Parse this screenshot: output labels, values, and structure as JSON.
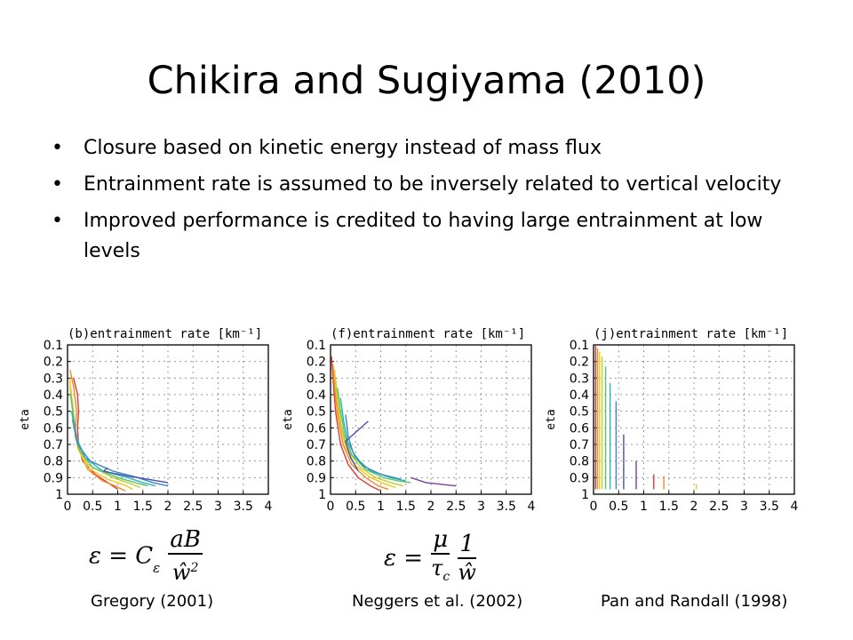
{
  "slide": {
    "title": "Chikira and Sugiyama (2010)",
    "bullets": [
      "Closure based on kinetic energy instead of mass flux",
      "Entrainment rate is assumed to be inversely related to vertical velocity",
      "Improved performance is credited to having large entrainment at low levels"
    ],
    "bullet_symbol": "•"
  },
  "equations": {
    "gregory": {
      "lhs": "ε = C",
      "sub": "ε",
      "num": "aB",
      "den": "ŵ",
      "sup": "2"
    },
    "neggers": {
      "lhs": "ε =",
      "num1": "μ",
      "den1": "τ",
      "sub1": "c",
      "num2": "1",
      "den2": "ŵ"
    }
  },
  "captions": {
    "gregory": "Gregory (2001)",
    "neggers": "Neggers et al. (2002)",
    "pan": "Pan and Randall (1998)"
  },
  "colors": {
    "series": [
      "#e03a2f",
      "#f08a24",
      "#f5c518",
      "#b9d233",
      "#5cc46a",
      "#2fb3b3",
      "#3a86c8",
      "#4a4fb0",
      "#7a3e9d"
    ],
    "grid": "#999999"
  },
  "chart_data": [
    {
      "type": "line",
      "title": "(b)entrainment rate [km⁻¹]",
      "ylabel": "eta",
      "xlim": [
        0,
        4
      ],
      "ylim": [
        1,
        0.1
      ],
      "xticks": [
        "0",
        "0.5",
        "1",
        "1.5",
        "2",
        "2.5",
        "3",
        "3.5",
        "4"
      ],
      "yticks": [
        "0.1",
        "0.2",
        "0.3",
        "0.4",
        "0.5",
        "0.6",
        "0.7",
        "0.8",
        "0.9",
        "1"
      ],
      "grid": true,
      "series": [
        {
          "points": [
            [
              0.12,
              0.3
            ],
            [
              0.2,
              0.4
            ],
            [
              0.22,
              0.5
            ],
            [
              0.2,
              0.6
            ],
            [
              0.22,
              0.7
            ],
            [
              0.3,
              0.8
            ],
            [
              0.55,
              0.88
            ],
            [
              0.8,
              0.93
            ],
            [
              1.0,
              0.97
            ]
          ]
        },
        {
          "points": [
            [
              0.05,
              0.25
            ],
            [
              0.12,
              0.35
            ],
            [
              0.18,
              0.5
            ],
            [
              0.15,
              0.65
            ],
            [
              0.25,
              0.75
            ],
            [
              0.4,
              0.85
            ],
            [
              0.7,
              0.92
            ],
            [
              0.95,
              0.95
            ],
            [
              1.15,
              0.98
            ]
          ]
        },
        {
          "points": [
            [
              0.04,
              0.3
            ],
            [
              0.1,
              0.45
            ],
            [
              0.15,
              0.6
            ],
            [
              0.2,
              0.72
            ],
            [
              0.4,
              0.84
            ],
            [
              0.8,
              0.91
            ],
            [
              1.1,
              0.94
            ],
            [
              1.3,
              0.97
            ]
          ]
        },
        {
          "points": [
            [
              0.05,
              0.35
            ],
            [
              0.12,
              0.55
            ],
            [
              0.2,
              0.7
            ],
            [
              0.4,
              0.82
            ],
            [
              0.9,
              0.9
            ],
            [
              1.2,
              0.93
            ],
            [
              1.45,
              0.96
            ]
          ]
        },
        {
          "points": [
            [
              0.06,
              0.4
            ],
            [
              0.15,
              0.6
            ],
            [
              0.25,
              0.74
            ],
            [
              0.5,
              0.84
            ],
            [
              1.0,
              0.9
            ],
            [
              1.35,
              0.93
            ],
            [
              1.6,
              0.95
            ]
          ]
        },
        {
          "points": [
            [
              0.08,
              0.5
            ],
            [
              0.18,
              0.66
            ],
            [
              0.35,
              0.78
            ],
            [
              0.7,
              0.86
            ],
            [
              1.2,
              0.9
            ],
            [
              1.5,
              0.93
            ],
            [
              1.75,
              0.95
            ]
          ]
        },
        {
          "points": [
            [
              0.1,
              0.55
            ],
            [
              0.2,
              0.7
            ],
            [
              0.45,
              0.8
            ],
            [
              0.9,
              0.86
            ],
            [
              1.4,
              0.9
            ],
            [
              1.7,
              0.93
            ],
            [
              2.0,
              0.95
            ]
          ]
        },
        {
          "points": [
            [
              0.8,
              0.84
            ],
            [
              0.72,
              0.86
            ],
            [
              0.85,
              0.87
            ],
            [
              1.2,
              0.89
            ],
            [
              1.6,
              0.91
            ],
            [
              2.0,
              0.93
            ]
          ]
        }
      ]
    },
    {
      "type": "line",
      "title": "(f)entrainment rate [km⁻¹]",
      "ylabel": "eta",
      "xlim": [
        0,
        4
      ],
      "ylim": [
        1,
        0.1
      ],
      "xticks": [
        "0",
        "0.5",
        "1",
        "1.5",
        "2",
        "2.5",
        "3",
        "3.5",
        "4"
      ],
      "yticks": [
        "0.1",
        "0.2",
        "0.3",
        "0.4",
        "0.5",
        "0.6",
        "0.7",
        "0.8",
        "0.9",
        "1"
      ],
      "grid": true,
      "series": [
        {
          "points": [
            [
              0.02,
              0.17
            ],
            [
              0.05,
              0.3
            ],
            [
              0.1,
              0.5
            ],
            [
              0.2,
              0.7
            ],
            [
              0.35,
              0.82
            ],
            [
              0.55,
              0.9
            ],
            [
              0.8,
              0.95
            ],
            [
              1.0,
              0.98
            ]
          ]
        },
        {
          "points": [
            [
              0.05,
              0.22
            ],
            [
              0.08,
              0.35
            ],
            [
              0.14,
              0.52
            ],
            [
              0.25,
              0.7
            ],
            [
              0.42,
              0.82
            ],
            [
              0.7,
              0.9
            ],
            [
              0.95,
              0.95
            ],
            [
              1.15,
              0.97
            ]
          ]
        },
        {
          "points": [
            [
              0.08,
              0.25
            ],
            [
              0.12,
              0.4
            ],
            [
              0.18,
              0.56
            ],
            [
              0.3,
              0.72
            ],
            [
              0.5,
              0.83
            ],
            [
              0.8,
              0.9
            ],
            [
              1.1,
              0.94
            ],
            [
              1.3,
              0.96
            ]
          ]
        },
        {
          "points": [
            [
              0.1,
              0.3
            ],
            [
              0.15,
              0.45
            ],
            [
              0.22,
              0.6
            ],
            [
              0.35,
              0.74
            ],
            [
              0.6,
              0.84
            ],
            [
              0.9,
              0.9
            ],
            [
              1.2,
              0.93
            ],
            [
              1.45,
              0.95
            ]
          ]
        },
        {
          "points": [
            [
              0.14,
              0.36
            ],
            [
              0.2,
              0.5
            ],
            [
              0.28,
              0.64
            ],
            [
              0.42,
              0.76
            ],
            [
              0.7,
              0.85
            ],
            [
              1.05,
              0.9
            ],
            [
              1.35,
              0.92
            ],
            [
              1.6,
              0.93
            ]
          ]
        },
        {
          "points": [
            [
              0.2,
              0.42
            ],
            [
              0.26,
              0.56
            ],
            [
              0.34,
              0.68
            ],
            [
              0.5,
              0.78
            ],
            [
              0.8,
              0.86
            ],
            [
              1.2,
              0.9
            ],
            [
              1.5,
              0.92
            ]
          ]
        },
        {
          "points": [
            [
              0.3,
              0.52
            ],
            [
              0.35,
              0.65
            ],
            [
              0.45,
              0.75
            ],
            [
              0.65,
              0.83
            ],
            [
              1.0,
              0.88
            ],
            [
              1.4,
              0.91
            ]
          ]
        },
        {
          "points": [
            [
              0.75,
              0.56
            ],
            [
              0.3,
              0.68
            ],
            [
              0.4,
              0.78
            ],
            [
              0.55,
              0.86
            ]
          ]
        },
        {
          "points": [
            [
              1.6,
              0.9
            ],
            [
              1.9,
              0.93
            ],
            [
              2.2,
              0.94
            ],
            [
              2.5,
              0.95
            ]
          ]
        }
      ]
    },
    {
      "type": "line",
      "title": "(j)entrainment rate [km⁻¹]",
      "ylabel": "eta",
      "xlim": [
        0,
        4
      ],
      "ylim": [
        1,
        0.1
      ],
      "xticks": [
        "0",
        "0.5",
        "1",
        "1.5",
        "2",
        "2.5",
        "3",
        "3.5",
        "4"
      ],
      "yticks": [
        "0.1",
        "0.2",
        "0.3",
        "0.4",
        "0.5",
        "0.6",
        "0.7",
        "0.8",
        "0.9",
        "1"
      ],
      "grid": true,
      "series": [
        {
          "points": [
            [
              0.04,
              0.1
            ],
            [
              0.04,
              0.97
            ]
          ]
        },
        {
          "points": [
            [
              0.08,
              0.12
            ],
            [
              0.08,
              0.97
            ]
          ]
        },
        {
          "points": [
            [
              0.12,
              0.14
            ],
            [
              0.12,
              0.97
            ]
          ]
        },
        {
          "points": [
            [
              0.17,
              0.17
            ],
            [
              0.17,
              0.97
            ]
          ]
        },
        {
          "points": [
            [
              0.24,
              0.23
            ],
            [
              0.24,
              0.97
            ]
          ]
        },
        {
          "points": [
            [
              0.33,
              0.33
            ],
            [
              0.33,
              0.97
            ]
          ]
        },
        {
          "points": [
            [
              0.45,
              0.44
            ],
            [
              0.45,
              0.97
            ]
          ]
        },
        {
          "points": [
            [
              0.6,
              0.64
            ],
            [
              0.6,
              0.97
            ]
          ]
        },
        {
          "points": [
            [
              0.85,
              0.8
            ],
            [
              0.85,
              0.97
            ]
          ]
        },
        {
          "points": [
            [
              1.2,
              0.88
            ],
            [
              1.2,
              0.97
            ]
          ]
        },
        {
          "points": [
            [
              1.4,
              0.89
            ],
            [
              1.4,
              0.97
            ]
          ]
        },
        {
          "points": [
            [
              2.05,
              0.94
            ],
            [
              2.05,
              0.97
            ]
          ]
        }
      ]
    }
  ]
}
